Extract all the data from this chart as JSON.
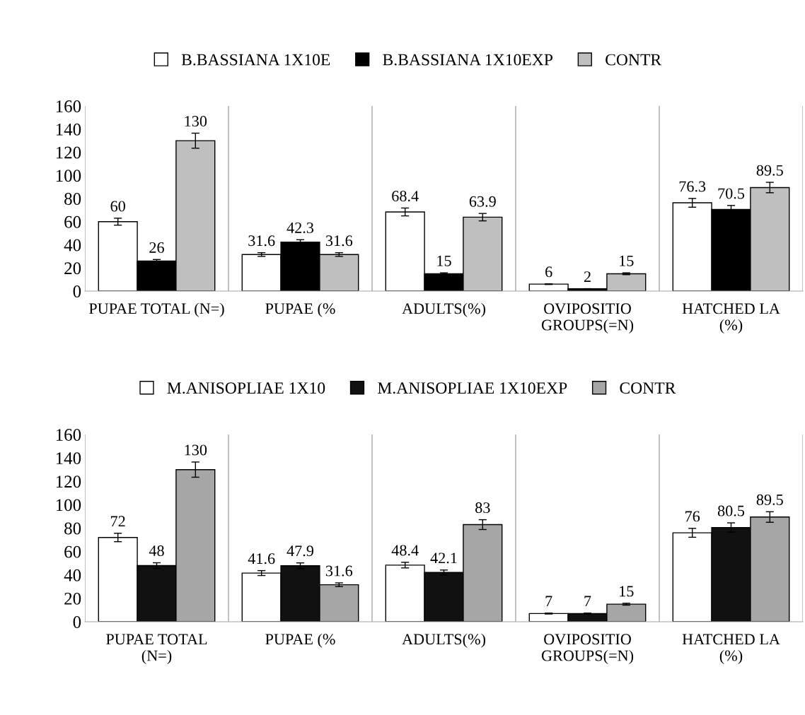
{
  "chart_data": [
    {
      "type": "bar",
      "categories": [
        "PUPAE TOTAL (N=)",
        "PUPAE (%",
        "ADULTS(%)",
        "OVIPOSITIO\nGROUPS(=N)",
        "HATCHED LA\n(%)"
      ],
      "series": [
        {
          "name": "B.BASSIANA 1X10E",
          "color": "#ffffff",
          "values": [
            60,
            31.6,
            68.4,
            6,
            76.3
          ],
          "errors": [
            3,
            1.6,
            3.4,
            0.3,
            3.8
          ]
        },
        {
          "name": "B.BASSIANA 1X10EXP",
          "color": "#000000",
          "values": [
            26,
            42.3,
            15,
            2,
            70.5
          ],
          "errors": [
            1.3,
            2.1,
            0.8,
            0.1,
            3.5
          ]
        },
        {
          "name": "CONTR",
          "color": "#bfbfbf",
          "values": [
            130,
            31.6,
            63.9,
            15,
            89.5
          ],
          "errors": [
            6.5,
            1.6,
            3.2,
            0.8,
            4.5
          ]
        }
      ],
      "ylim": [
        0,
        160
      ],
      "yticks": [
        0,
        20,
        40,
        60,
        80,
        100,
        120,
        140,
        160
      ],
      "grid": "x",
      "legend": "top",
      "data_labels": true
    },
    {
      "type": "bar",
      "categories": [
        "PUPAE TOTAL\n(N=)",
        "PUPAE (%",
        "ADULTS(%)",
        "OVIPOSITIO\nGROUPS(=N)",
        "HATCHED LA\n(%)"
      ],
      "series": [
        {
          "name": "M.ANISOPLIAE 1X10",
          "color": "#ffffff",
          "values": [
            72,
            41.6,
            48.4,
            7,
            76
          ],
          "errors": [
            3.6,
            2.1,
            2.4,
            0.4,
            3.8
          ]
        },
        {
          "name": "M.ANISOPLIAE 1X10EXP",
          "color": "#111111",
          "values": [
            48,
            47.9,
            42.1,
            7,
            80.5
          ],
          "errors": [
            2.4,
            2.4,
            2.1,
            0.4,
            4
          ]
        },
        {
          "name": "CONTR",
          "color": "#a6a6a6",
          "values": [
            130,
            31.6,
            83,
            15,
            89.5
          ],
          "errors": [
            6.5,
            1.6,
            4.2,
            0.8,
            4.5
          ]
        }
      ],
      "ylim": [
        0,
        160
      ],
      "yticks": [
        0,
        20,
        40,
        60,
        80,
        100,
        120,
        140,
        160
      ],
      "grid": "x",
      "legend": "top",
      "data_labels": true
    }
  ]
}
